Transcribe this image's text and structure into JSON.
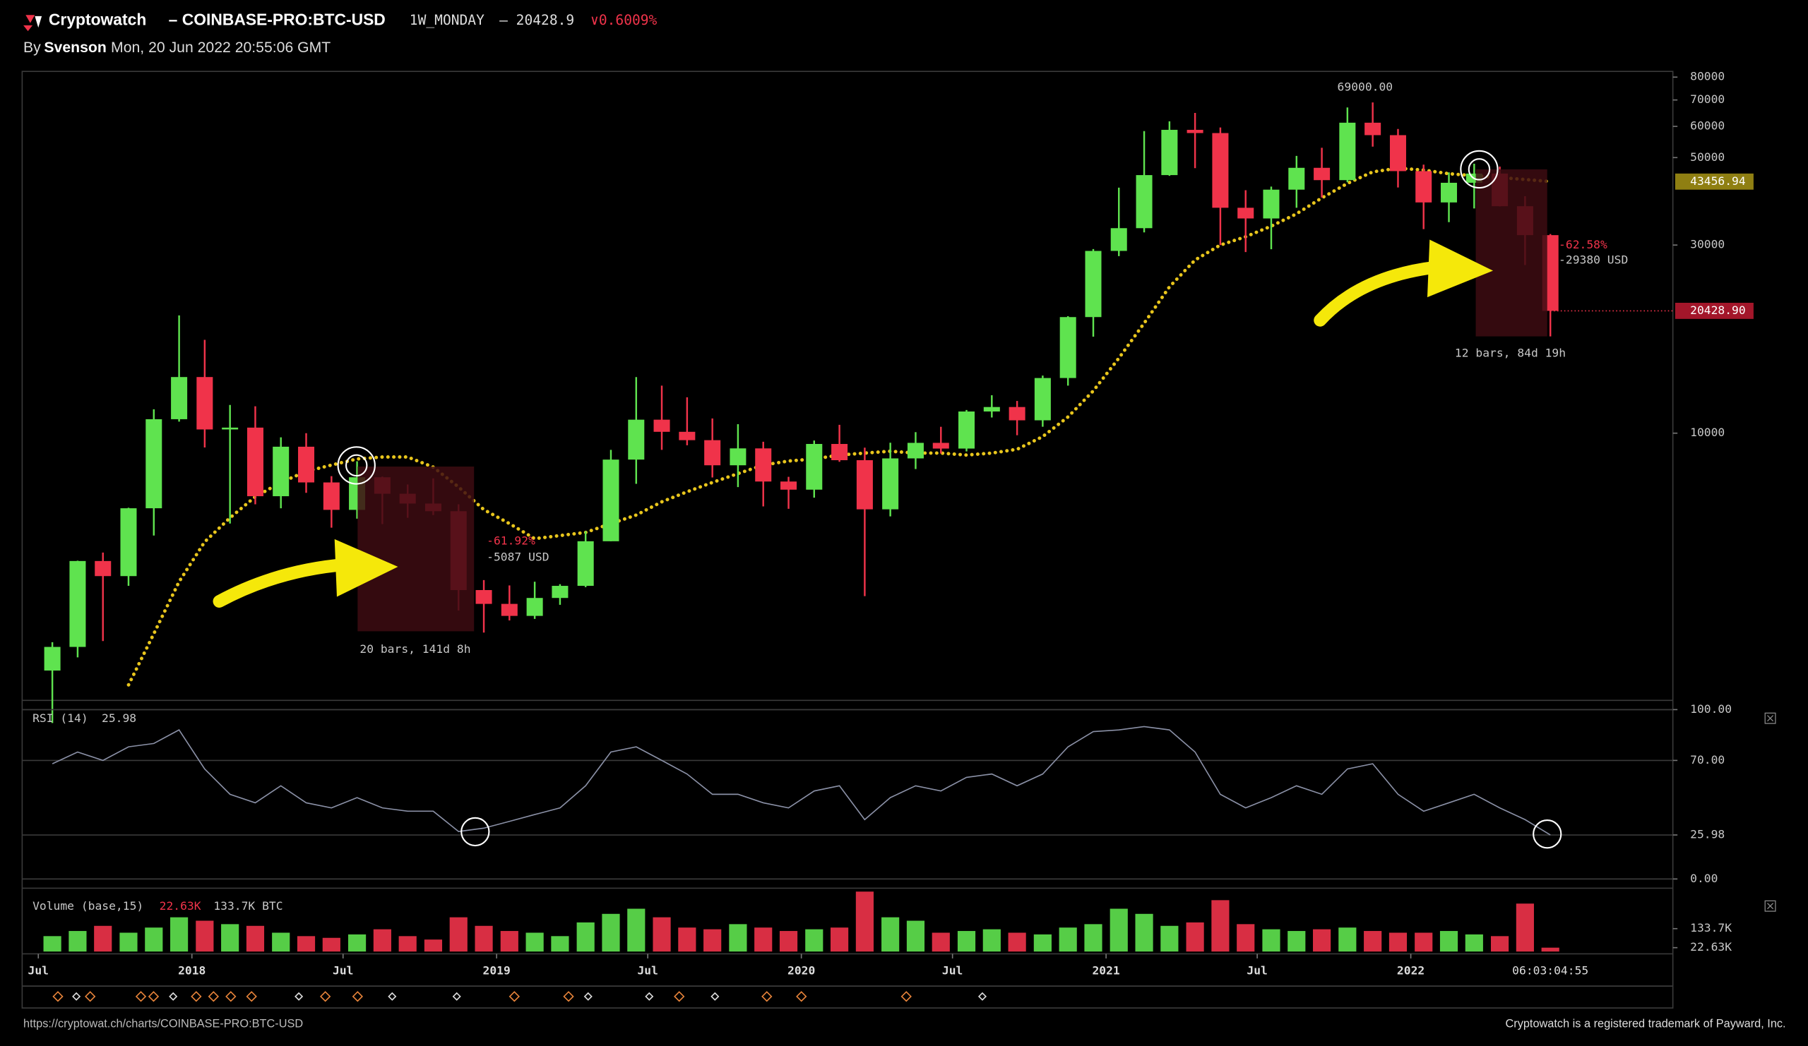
{
  "header": {
    "brand": "Cryptowatch",
    "symbol": "– COINBASE-PRO:BTC-USD",
    "interval": "1W_MONDAY",
    "price": "– 20428.9",
    "change": "∨0.6009%"
  },
  "byline": {
    "prefix": "By",
    "author": "Svenson",
    "date": "Mon, 20 Jun 2022 20:55:06 GMT"
  },
  "annotations": {
    "ath": "69000.00",
    "drop1_pct": "-61.92%",
    "drop1_usd": "-5087 USD",
    "drop1_span": "20 bars, 141d 8h",
    "drop2_pct": "-62.58%",
    "drop2_usd": "-29380 USD",
    "drop2_span": "12 bars, 84d 19h"
  },
  "footer": {
    "url": "https://cryptowat.ch/charts/COINBASE-PRO:BTC-USD",
    "trademark": "Cryptowatch is a registered trademark of Payward, Inc."
  },
  "chart_data": [
    {
      "type": "candlestick",
      "log": true,
      "up_color": "#5fe34f",
      "down_color": "#f0334a",
      "xlim": [
        2017.443,
        2022.86
      ],
      "ylim": [
        2100,
        82700
      ],
      "yticks": [
        80000,
        70000,
        60000,
        50000,
        30000,
        10000
      ],
      "xticks": [
        {
          "value": 2017.496,
          "label": "Jul"
        },
        {
          "value": 2018,
          "label": "2018"
        },
        {
          "value": 2018.496,
          "label": "Jul"
        },
        {
          "value": 2019,
          "label": "2019"
        },
        {
          "value": 2019.496,
          "label": "Jul"
        },
        {
          "value": 2020,
          "label": "2020"
        },
        {
          "value": 2020.496,
          "label": "Jul"
        },
        {
          "value": 2021,
          "label": "2021"
        },
        {
          "value": 2021.496,
          "label": "Jul"
        },
        {
          "value": 2022,
          "label": "2022"
        }
      ],
      "countdown": "06:03:04:55",
      "x": [
        2017.542,
        2017.625,
        2017.708,
        2017.792,
        2017.875,
        2017.958,
        2018.042,
        2018.125,
        2018.208,
        2018.292,
        2018.375,
        2018.458,
        2018.542,
        2018.625,
        2018.708,
        2018.792,
        2018.875,
        2018.958,
        2019.042,
        2019.125,
        2019.208,
        2019.292,
        2019.375,
        2019.458,
        2019.542,
        2019.625,
        2019.708,
        2019.792,
        2019.875,
        2019.958,
        2020.042,
        2020.125,
        2020.208,
        2020.292,
        2020.375,
        2020.458,
        2020.542,
        2020.625,
        2020.708,
        2020.792,
        2020.875,
        2020.958,
        2021.042,
        2021.125,
        2021.208,
        2021.292,
        2021.375,
        2021.458,
        2021.542,
        2021.625,
        2021.708,
        2021.792,
        2021.875,
        2021.958,
        2022.042,
        2022.125,
        2022.208,
        2022.292,
        2022.375,
        2022.458
      ],
      "open": [
        2500,
        2870,
        4740,
        4340,
        6450,
        10850,
        13880,
        10220,
        10330,
        6920,
        9240,
        7500,
        6390,
        7730,
        7020,
        6630,
        6340,
        4000,
        3690,
        3440,
        3820,
        4100,
        5320,
        8570,
        10820,
        10080,
        9600,
        8290,
        9150,
        7540,
        7190,
        9390,
        8540,
        6410,
        8630,
        9450,
        9140,
        11350,
        11650,
        10780,
        13800,
        19700,
        28990,
        33110,
        45140,
        58800,
        57700,
        37300,
        35040,
        41460,
        47100,
        43830,
        61300,
        57000,
        46200,
        38480,
        43160,
        45540,
        37640,
        31790
      ],
      "high": [
        2950,
        4750,
        4980,
        6470,
        11500,
        19890,
        17250,
        11790,
        11700,
        9760,
        10000,
        7780,
        8490,
        7760,
        7410,
        7680,
        6600,
        4240,
        4110,
        4200,
        4140,
        5640,
        9070,
        13880,
        13200,
        12330,
        10900,
        10540,
        9510,
        7750,
        9580,
        10500,
        9190,
        9460,
        10060,
        10380,
        11450,
        12480,
        12070,
        14000,
        19800,
        29300,
        41950,
        58350,
        61790,
        64900,
        59600,
        41330,
        42200,
        50500,
        52950,
        67000,
        69000,
        59100,
        47990,
        45850,
        48240,
        47440,
        39900,
        31990
      ],
      "low": [
        1840,
        2700,
        2970,
        4100,
        5500,
        10700,
        9200,
        5900,
        6600,
        6450,
        7060,
        5760,
        6070,
        5880,
        6100,
        6200,
        3550,
        3120,
        3350,
        3380,
        3670,
        4070,
        5320,
        7440,
        9070,
        9320,
        7720,
        7300,
        6520,
        6430,
        6860,
        8460,
        3860,
        6150,
        8110,
        8880,
        8990,
        10960,
        9880,
        10380,
        13200,
        17570,
        28130,
        32300,
        44950,
        47000,
        30000,
        28800,
        29280,
        37300,
        39600,
        43300,
        53300,
        42000,
        32930,
        34300,
        37150,
        37600,
        26700,
        17600
      ],
      "close": [
        2870,
        4740,
        4340,
        6450,
        10850,
        13880,
        10220,
        10330,
        6920,
        9240,
        7500,
        6390,
        7730,
        7020,
        6630,
        6340,
        4000,
        3690,
        3440,
        3820,
        4100,
        5320,
        8570,
        10820,
        10080,
        9600,
        8290,
        9150,
        7540,
        7190,
        9390,
        8540,
        6410,
        8630,
        9450,
        9140,
        11350,
        11650,
        10780,
        13800,
        19700,
        28990,
        33110,
        45140,
        58800,
        57700,
        37300,
        35040,
        41460,
        47100,
        43830,
        61300,
        57000,
        46200,
        38480,
        43160,
        45540,
        37640,
        31790,
        20428.9
      ],
      "overlay": {
        "color": "#e8c51c",
        "values": [
          null,
          null,
          null,
          2300,
          3100,
          4200,
          5300,
          6100,
          6900,
          7500,
          8000,
          8300,
          8600,
          8700,
          8700,
          8200,
          7300,
          6400,
          5900,
          5400,
          5500,
          5600,
          5900,
          6200,
          6700,
          7100,
          7500,
          7900,
          8300,
          8500,
          8600,
          8800,
          8900,
          9000,
          8900,
          8900,
          8800,
          8900,
          9100,
          9800,
          11000,
          12800,
          15500,
          19000,
          23500,
          27500,
          30000,
          31500,
          33500,
          36000,
          39500,
          43000,
          46000,
          47000,
          46500,
          45500,
          45000,
          44500,
          44000,
          43456.94
        ]
      },
      "badges": [
        {
          "value": 43456.94,
          "label": "43456.94",
          "color": "#8f7f12"
        },
        {
          "value": 20428.9,
          "label": "20428.90",
          "color": "#a3162a"
        }
      ]
    },
    {
      "type": "line",
      "title": "RSI (14)",
      "title_value": "25.98",
      "color": "#8a90a6",
      "xlim": [
        2017.443,
        2022.86
      ],
      "ylim": [
        0,
        100
      ],
      "yticks": [
        {
          "value": 100,
          "label": "100.00"
        },
        {
          "value": 70,
          "label": "70.00"
        },
        {
          "value": 25.98,
          "label": "25.98"
        },
        {
          "value": 0,
          "label": "0.00"
        }
      ],
      "x": [
        2017.542,
        2017.625,
        2017.708,
        2017.792,
        2017.875,
        2017.958,
        2018.042,
        2018.125,
        2018.208,
        2018.292,
        2018.375,
        2018.458,
        2018.542,
        2018.625,
        2018.708,
        2018.792,
        2018.875,
        2018.958,
        2019.042,
        2019.125,
        2019.208,
        2019.292,
        2019.375,
        2019.458,
        2019.542,
        2019.625,
        2019.708,
        2019.792,
        2019.875,
        2019.958,
        2020.042,
        2020.125,
        2020.208,
        2020.292,
        2020.375,
        2020.458,
        2020.542,
        2020.625,
        2020.708,
        2020.792,
        2020.875,
        2020.958,
        2021.042,
        2021.125,
        2021.208,
        2021.292,
        2021.375,
        2021.458,
        2021.542,
        2021.625,
        2021.708,
        2021.792,
        2021.875,
        2021.958,
        2022.042,
        2022.125,
        2022.208,
        2022.292,
        2022.375,
        2022.458
      ],
      "values": [
        68,
        75,
        70,
        78,
        80,
        88,
        65,
        50,
        45,
        55,
        45,
        42,
        48,
        42,
        40,
        40,
        28,
        30,
        34,
        38,
        42,
        55,
        75,
        78,
        70,
        62,
        50,
        50,
        45,
        42,
        52,
        55,
        35,
        48,
        55,
        52,
        60,
        62,
        55,
        62,
        78,
        87,
        88,
        90,
        88,
        75,
        50,
        42,
        48,
        55,
        50,
        65,
        68,
        50,
        40,
        45,
        50,
        42,
        35,
        25.98
      ]
    },
    {
      "type": "bar",
      "title": "Volume (base,15)",
      "title_value": "22.63K",
      "title_unit": "133.7K BTC",
      "up_color": "#5fe34f",
      "down_color": "#f0334a",
      "xlim": [
        2017.443,
        2022.86
      ],
      "ylim": [
        0,
        370000
      ],
      "yticks": [
        {
          "value": 133700,
          "label": "133.7K"
        },
        {
          "value": 22630,
          "label": "22.63K"
        }
      ],
      "x": [
        2017.542,
        2017.625,
        2017.708,
        2017.792,
        2017.875,
        2017.958,
        2018.042,
        2018.125,
        2018.208,
        2018.292,
        2018.375,
        2018.458,
        2018.542,
        2018.625,
        2018.708,
        2018.792,
        2018.875,
        2018.958,
        2019.042,
        2019.125,
        2019.208,
        2019.292,
        2019.375,
        2019.458,
        2019.542,
        2019.625,
        2019.708,
        2019.792,
        2019.875,
        2019.958,
        2020.042,
        2020.125,
        2020.208,
        2020.292,
        2020.375,
        2020.458,
        2020.542,
        2020.625,
        2020.708,
        2020.792,
        2020.875,
        2020.958,
        2021.042,
        2021.125,
        2021.208,
        2021.292,
        2021.375,
        2021.458,
        2021.542,
        2021.625,
        2021.708,
        2021.792,
        2021.875,
        2021.958,
        2022.042,
        2022.125,
        2022.208,
        2022.292,
        2022.375,
        2022.458
      ],
      "values": [
        90000,
        120000,
        150000,
        110000,
        140000,
        200000,
        180000,
        160000,
        150000,
        110000,
        90000,
        80000,
        100000,
        130000,
        90000,
        70000,
        200000,
        150000,
        120000,
        110000,
        90000,
        170000,
        220000,
        250000,
        200000,
        140000,
        130000,
        160000,
        140000,
        120000,
        130000,
        140000,
        350000,
        200000,
        180000,
        110000,
        120000,
        130000,
        110000,
        100000,
        140000,
        160000,
        250000,
        220000,
        150000,
        170000,
        300000,
        160000,
        130000,
        120000,
        130000,
        140000,
        120000,
        110000,
        110000,
        120000,
        100000,
        90000,
        280000,
        22630
      ]
    }
  ]
}
